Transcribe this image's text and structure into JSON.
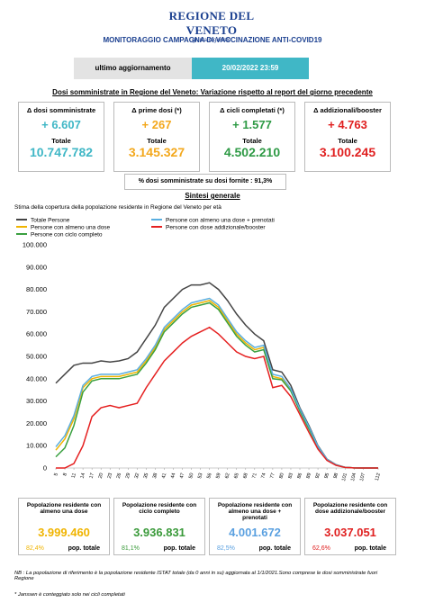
{
  "header": {
    "logo_title": "REGIONE DEL VENETO",
    "logo_subtitle": "giunta regionale",
    "title": "MONITORAGGIO CAMPAGNA DI VACCINAZIONE ANTI-COVID19",
    "update_label": "ultimo aggiornamento",
    "update_value": "20/02/2022 23:59"
  },
  "daily": {
    "title": "Dosi somministrate in Regione del Veneto: Variazione rispetto al report del giorno precedente",
    "cards": [
      {
        "label": "Δ dosi somministrate",
        "delta": "+ 6.607",
        "total_label": "Totale",
        "total": "10.747.782"
      },
      {
        "label": "Δ prime dosi (*)",
        "delta": "+ 267",
        "total_label": "Totale",
        "total": "3.145.327"
      },
      {
        "label": "Δ cicli completati (*)",
        "delta": "+ 1.577",
        "total_label": "Totale",
        "total": "4.502.210"
      },
      {
        "label": "Δ addizionali/booster",
        "delta": "+ 4.763",
        "total_label": "Totale",
        "total": "3.100.245"
      }
    ]
  },
  "ratio": {
    "label": "% dosi somministrate su dosi fornite :",
    "value": "91,3%"
  },
  "summary_title": "Sintesi generale",
  "chart_data": {
    "type": "line",
    "title": "Stima della copertura della popolazione residente in Regione del Veneto per età",
    "x": [
      5,
      8,
      11,
      14,
      17,
      20,
      23,
      26,
      29,
      32,
      35,
      38,
      41,
      44,
      47,
      50,
      53,
      56,
      59,
      62,
      65,
      68,
      71,
      74,
      77,
      80,
      83,
      86,
      89,
      92,
      95,
      98,
      101,
      104,
      107,
      110,
      112
    ],
    "xlim": [
      5,
      112
    ],
    "xticks": [
      5,
      8,
      11,
      14,
      17,
      20,
      23,
      26,
      29,
      32,
      35,
      38,
      41,
      44,
      47,
      50,
      53,
      56,
      59,
      62,
      65,
      68,
      71,
      74,
      77,
      80,
      83,
      86,
      89,
      92,
      95,
      98,
      101,
      104,
      107,
      112
    ],
    "ylim": [
      0,
      100000
    ],
    "yticks": [
      0,
      {
        "value": 10000,
        "label": "10.000"
      },
      {
        "value": 20000,
        "label": "20.000"
      },
      {
        "value": 30000,
        "label": "30.000"
      },
      {
        "value": 40000,
        "label": "40.000"
      },
      {
        "value": 50000,
        "label": "50.000"
      },
      {
        "value": 60000,
        "label": "60.000"
      },
      {
        "value": 70000,
        "label": "70.000"
      },
      {
        "value": 80000,
        "label": "80.000"
      },
      {
        "value": 90000,
        "label": "90.000"
      },
      {
        "value": 100000,
        "label": "100.000"
      }
    ],
    "series": [
      {
        "name": "Totale Persone",
        "color": "#444444",
        "values": [
          38000,
          42000,
          46000,
          47000,
          47000,
          48000,
          47500,
          48000,
          49000,
          52000,
          58000,
          64000,
          72000,
          76000,
          80000,
          82000,
          82000,
          83000,
          80000,
          75000,
          69000,
          64000,
          60000,
          57000,
          44000,
          43000,
          37000,
          27000,
          19000,
          10000,
          4000,
          1500,
          300,
          50,
          10,
          0,
          0
        ]
      },
      {
        "name": "Persone con almeno una dose",
        "color": "#f0b400",
        "values": [
          8000,
          13000,
          22000,
          36000,
          40000,
          41000,
          41000,
          41000,
          42000,
          43000,
          48000,
          54000,
          62000,
          66000,
          70000,
          73000,
          74000,
          75000,
          72000,
          66000,
          60000,
          56000,
          53000,
          54000,
          41000,
          40000,
          35000,
          26000,
          18000,
          9500,
          3800,
          1400,
          300,
          50,
          10,
          0,
          0
        ]
      },
      {
        "name": "Persone con ciclo completo",
        "color": "#3aa040",
        "values": [
          5000,
          9000,
          19000,
          34000,
          39000,
          40000,
          40000,
          40000,
          41000,
          42000,
          47000,
          53000,
          61000,
          65000,
          69000,
          72000,
          73000,
          74000,
          71000,
          65000,
          59000,
          55000,
          52000,
          53000,
          40000,
          39500,
          34500,
          25500,
          17500,
          9300,
          3700,
          1350,
          280,
          45,
          8,
          0,
          0
        ]
      },
      {
        "name": "Persone con almeno una dose + prenotati",
        "color": "#5aaee0",
        "values": [
          9500,
          14500,
          23500,
          37000,
          41000,
          42000,
          42000,
          42000,
          43000,
          44000,
          49000,
          55000,
          63000,
          67000,
          71000,
          74000,
          75000,
          76000,
          73000,
          67000,
          61000,
          57000,
          54000,
          55000,
          42000,
          41000,
          35500,
          26500,
          18500,
          9700,
          3900,
          1450,
          310,
          50,
          10,
          0,
          0
        ]
      },
      {
        "name": "Persone con dose addizionale/booster",
        "color": "#e52020",
        "values": [
          0,
          0,
          2000,
          10000,
          23000,
          27000,
          28000,
          27000,
          28000,
          29000,
          36000,
          42000,
          48000,
          52000,
          56000,
          59000,
          61000,
          63000,
          60000,
          56000,
          52000,
          50000,
          49000,
          50000,
          36000,
          37000,
          32000,
          24000,
          16000,
          8500,
          3400,
          1200,
          250,
          40,
          5,
          0,
          0
        ]
      }
    ]
  },
  "population_cards": [
    {
      "label": "Popolazione residente con almeno una dose",
      "value": "3.999.460",
      "percent": "82,4%",
      "percent_label": "pop. totale"
    },
    {
      "label": "Popolazione residente con ciclo completo",
      "value": "3.936.831",
      "percent": "81,1%",
      "percent_label": "pop. totale"
    },
    {
      "label": "Popolazione residente con almeno una dose + prenotati",
      "value": "4.001.672",
      "percent": "82,5%",
      "percent_label": "pop. totale"
    },
    {
      "label": "Popolazione residente con dose addizionale/booster",
      "value": "3.037.051",
      "percent": "62,6%",
      "percent_label": "pop. totale"
    }
  ],
  "notes": [
    "NB : La popolazione di riferimento è la popolazione residente ISTAT totale (da 0 anni in su) aggiornata  al 1/1/2021.Sono comprese le dosi somministrate fuori Regione",
    "* Janssen è conteggiato solo nei cicli completati"
  ]
}
